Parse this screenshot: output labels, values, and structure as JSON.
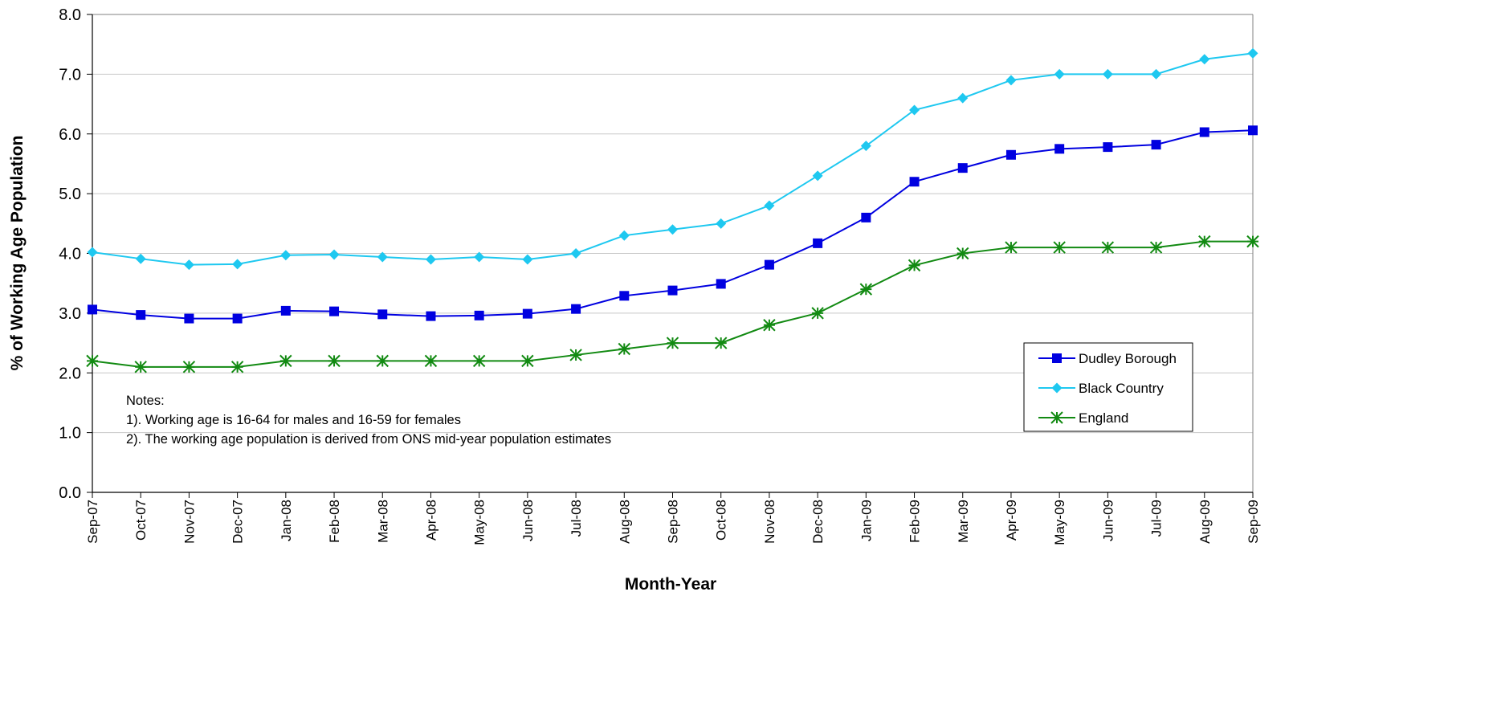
{
  "chart_data": {
    "type": "line",
    "title": "",
    "xlabel": "Month-Year",
    "ylabel": "% of Working Age Population",
    "ylim": [
      0,
      8
    ],
    "yticks": [
      "0.0",
      "1.0",
      "2.0",
      "3.0",
      "4.0",
      "5.0",
      "6.0",
      "7.0",
      "8.0"
    ],
    "grid": "horizontal",
    "legend_position": "right",
    "categories": [
      "Sep-07",
      "Oct-07",
      "Nov-07",
      "Dec-07",
      "Jan-08",
      "Feb-08",
      "Mar-08",
      "Apr-08",
      "May-08",
      "Jun-08",
      "Jul-08",
      "Aug-08",
      "Sep-08",
      "Oct-08",
      "Nov-08",
      "Dec-08",
      "Jan-09",
      "Feb-09",
      "Mar-09",
      "Apr-09",
      "May-09",
      "Jun-09",
      "Jul-09",
      "Aug-09",
      "Sep-09"
    ],
    "series": [
      {
        "name": "Dudley Borough",
        "color": "#0000E0",
        "marker": "square",
        "values": [
          3.06,
          2.97,
          2.91,
          2.91,
          3.04,
          3.03,
          2.98,
          2.95,
          2.96,
          2.99,
          3.07,
          3.29,
          3.38,
          3.49,
          3.81,
          4.17,
          4.6,
          5.2,
          5.43,
          5.65,
          5.75,
          5.78,
          5.82,
          6.03,
          6.06
        ]
      },
      {
        "name": "Black Country",
        "color": "#1EC8F0",
        "marker": "diamond",
        "values": [
          4.02,
          3.91,
          3.81,
          3.82,
          3.97,
          3.98,
          3.94,
          3.9,
          3.94,
          3.9,
          4.0,
          4.3,
          4.4,
          4.5,
          4.8,
          5.3,
          5.8,
          6.4,
          6.6,
          6.9,
          7.0,
          7.0,
          7.0,
          7.25,
          7.35
        ]
      },
      {
        "name": "England",
        "color": "#128A12",
        "marker": "star",
        "values": [
          2.2,
          2.1,
          2.1,
          2.1,
          2.2,
          2.2,
          2.2,
          2.2,
          2.2,
          2.2,
          2.3,
          2.4,
          2.5,
          2.5,
          2.8,
          3.0,
          3.4,
          3.8,
          4.0,
          4.1,
          4.1,
          4.1,
          4.1,
          4.2,
          4.2
        ]
      }
    ],
    "annotations": [
      "Notes:",
      "1).  Working age is 16-64 for males and 16-59 for females",
      "2). The working age population is derived from ONS mid-year population estimates"
    ]
  }
}
